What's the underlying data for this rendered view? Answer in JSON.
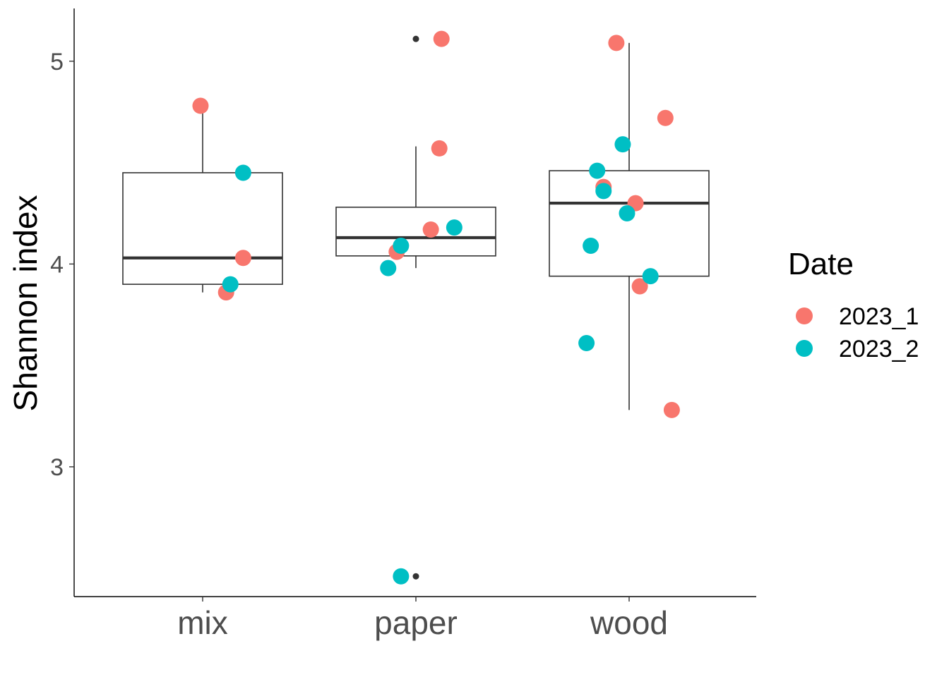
{
  "chart_data": {
    "type": "boxplot",
    "xlabel": "",
    "ylabel": "Shannon index",
    "ylim": [
      2.36,
      5.26
    ],
    "yticks": [
      3,
      4,
      5
    ],
    "categories": [
      "mix",
      "paper",
      "wood"
    ],
    "grid": false,
    "legend": {
      "title": "Date",
      "placement": "right",
      "entries": [
        {
          "label": "2023_1",
          "color": "#F8766D"
        },
        {
          "label": "2023_2",
          "color": "#00BFC4"
        }
      ]
    },
    "boxes": [
      {
        "category": "mix",
        "lower_whisker": 3.86,
        "q1": 3.9,
        "median": 4.03,
        "q3": 4.45,
        "upper_whisker": 4.78,
        "outliers": []
      },
      {
        "category": "paper",
        "lower_whisker": 3.98,
        "q1": 4.04,
        "median": 4.13,
        "q3": 4.28,
        "upper_whisker": 4.58,
        "outliers": [
          5.11,
          2.46
        ]
      },
      {
        "category": "wood",
        "lower_whisker": 3.28,
        "q1": 3.94,
        "median": 4.3,
        "q3": 4.46,
        "upper_whisker": 5.09,
        "outliers": []
      }
    ],
    "series": [
      {
        "name": "2023_1",
        "points": [
          {
            "category": "mix",
            "offset": -0.01,
            "y": 4.78
          },
          {
            "category": "mix",
            "offset": 0.19,
            "y": 4.03
          },
          {
            "category": "mix",
            "offset": 0.11,
            "y": 3.86
          },
          {
            "category": "paper",
            "offset": 0.12,
            "y": 5.11
          },
          {
            "category": "paper",
            "offset": 0.11,
            "y": 4.57
          },
          {
            "category": "paper",
            "offset": 0.07,
            "y": 4.17
          },
          {
            "category": "paper",
            "offset": -0.09,
            "y": 4.06
          },
          {
            "category": "wood",
            "offset": -0.06,
            "y": 5.09
          },
          {
            "category": "wood",
            "offset": 0.17,
            "y": 4.72
          },
          {
            "category": "wood",
            "offset": -0.12,
            "y": 4.38
          },
          {
            "category": "wood",
            "offset": 0.03,
            "y": 4.3
          },
          {
            "category": "wood",
            "offset": 0.05,
            "y": 3.89
          },
          {
            "category": "wood",
            "offset": 0.2,
            "y": 3.28
          }
        ]
      },
      {
        "name": "2023_2",
        "points": [
          {
            "category": "mix",
            "offset": 0.19,
            "y": 4.45
          },
          {
            "category": "mix",
            "offset": 0.13,
            "y": 3.9
          },
          {
            "category": "paper",
            "offset": 0.18,
            "y": 4.18
          },
          {
            "category": "paper",
            "offset": -0.07,
            "y": 4.09
          },
          {
            "category": "paper",
            "offset": -0.13,
            "y": 3.98
          },
          {
            "category": "paper",
            "offset": -0.07,
            "y": 2.46
          },
          {
            "category": "wood",
            "offset": -0.03,
            "y": 4.59
          },
          {
            "category": "wood",
            "offset": -0.15,
            "y": 4.46
          },
          {
            "category": "wood",
            "offset": -0.12,
            "y": 4.36
          },
          {
            "category": "wood",
            "offset": -0.01,
            "y": 4.25
          },
          {
            "category": "wood",
            "offset": -0.18,
            "y": 4.09
          },
          {
            "category": "wood",
            "offset": 0.1,
            "y": 3.94
          },
          {
            "category": "wood",
            "offset": -0.2,
            "y": 3.61
          }
        ]
      }
    ]
  }
}
